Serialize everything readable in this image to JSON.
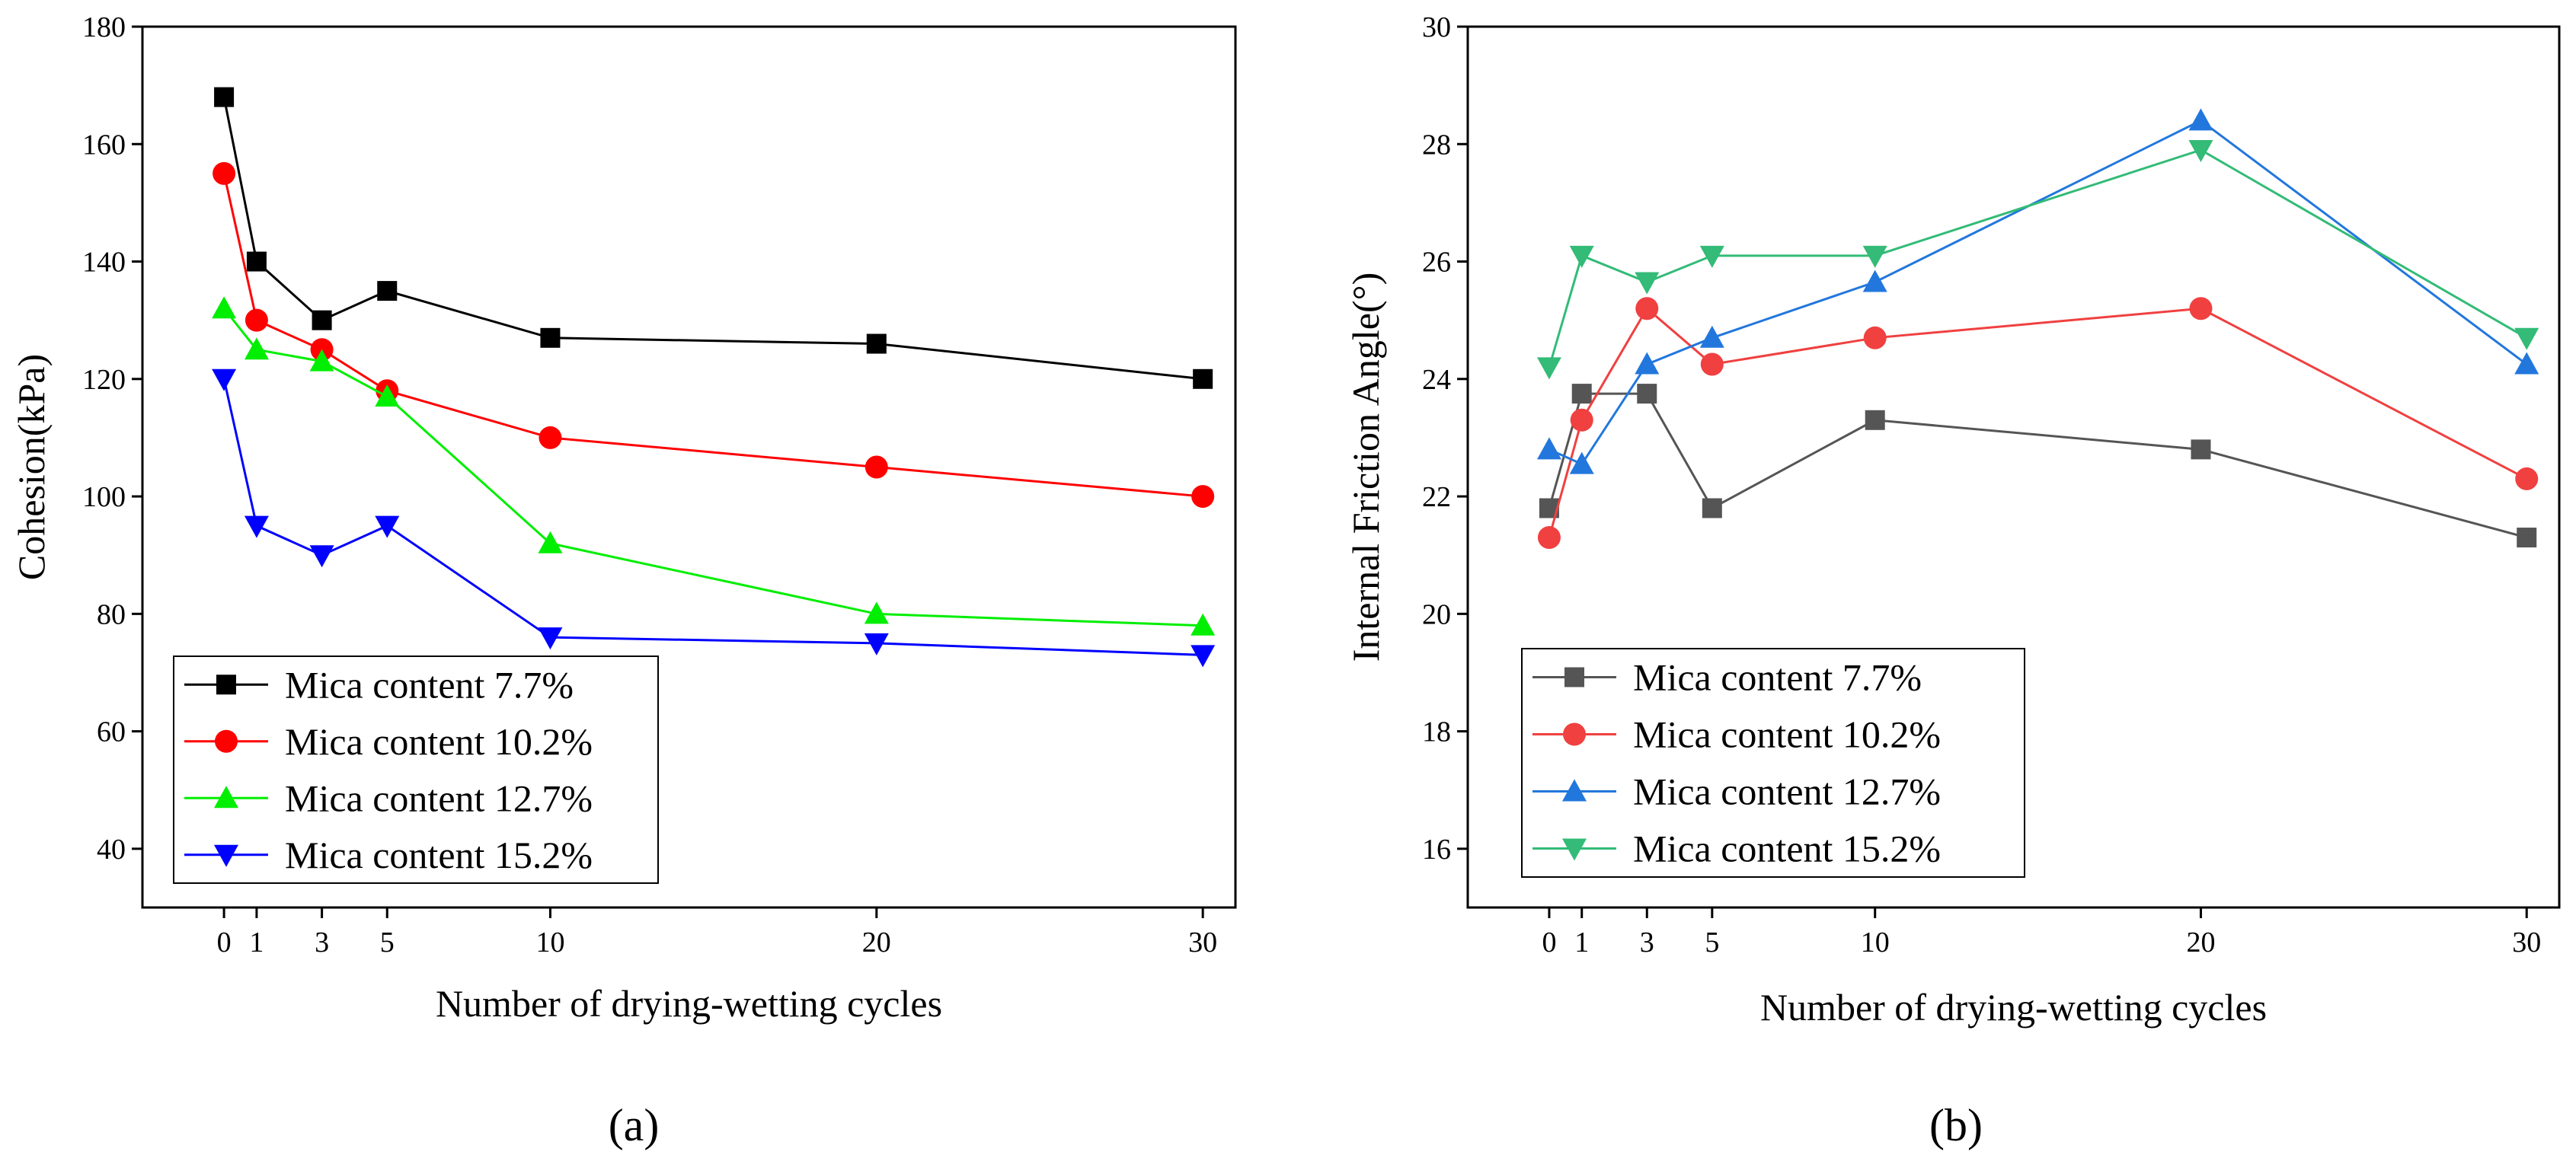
{
  "chart_data": [
    {
      "type": "line",
      "panel_label": "(a)",
      "xlabel": "Number of drying-wetting cycles",
      "ylabel": "Cohesion(kPa)",
      "x": [
        0,
        1,
        3,
        5,
        10,
        20,
        30
      ],
      "x_ticks": [
        "0",
        "1",
        "3",
        "5",
        "10",
        "20",
        "30"
      ],
      "xlim": [
        -2.5,
        31
      ],
      "ylim": [
        30,
        180
      ],
      "y_ticks": [
        "40",
        "60",
        "80",
        "100",
        "120",
        "140",
        "160",
        "180"
      ],
      "legend_position": "bottom-left",
      "series": [
        {
          "name": "Mica content 7.7%",
          "color": "#000000",
          "marker": "square",
          "values": [
            168,
            140,
            130,
            135,
            127,
            126,
            120
          ]
        },
        {
          "name": "Mica content 10.2%",
          "color": "#ff0000",
          "marker": "circle",
          "values": [
            155,
            130,
            125,
            118,
            110,
            105,
            100
          ]
        },
        {
          "name": "Mica content 12.7%",
          "color": "#00ee00",
          "marker": "triangle-up",
          "values": [
            132,
            125,
            123,
            117,
            92,
            80,
            78
          ]
        },
        {
          "name": "Mica content 15.2%",
          "color": "#0000ff",
          "marker": "triangle-down",
          "values": [
            120,
            95,
            90,
            95,
            76,
            75,
            73
          ]
        }
      ]
    },
    {
      "type": "line",
      "panel_label": "(b)",
      "xlabel": "Number of drying-wetting cycles",
      "ylabel": "Internal Friction Angle(°)",
      "x": [
        0,
        1,
        3,
        5,
        10,
        20,
        30
      ],
      "x_ticks": [
        "0",
        "1",
        "3",
        "5",
        "10",
        "20",
        "30"
      ],
      "xlim": [
        -2.5,
        31
      ],
      "ylim": [
        15,
        30
      ],
      "y_ticks": [
        "16",
        "18",
        "20",
        "22",
        "24",
        "26",
        "28",
        "30"
      ],
      "legend_position": "bottom-left",
      "series": [
        {
          "name": "Mica content 7.7%",
          "color": "#555555",
          "marker": "square",
          "values": [
            21.8,
            23.75,
            23.75,
            21.8,
            23.3,
            22.8,
            21.3
          ]
        },
        {
          "name": "Mica content 10.2%",
          "color": "#f04040",
          "marker": "circle",
          "values": [
            21.3,
            23.3,
            25.2,
            24.25,
            24.7,
            25.2,
            22.3
          ]
        },
        {
          "name": "Mica content 12.7%",
          "color": "#2277dd",
          "marker": "triangle-up",
          "values": [
            22.8,
            22.55,
            24.25,
            24.7,
            25.65,
            28.4,
            24.25
          ]
        },
        {
          "name": "Mica content 15.2%",
          "color": "#33bb77",
          "marker": "triangle-down",
          "values": [
            24.2,
            26.1,
            25.65,
            26.1,
            26.1,
            27.9,
            24.7
          ]
        }
      ]
    }
  ]
}
